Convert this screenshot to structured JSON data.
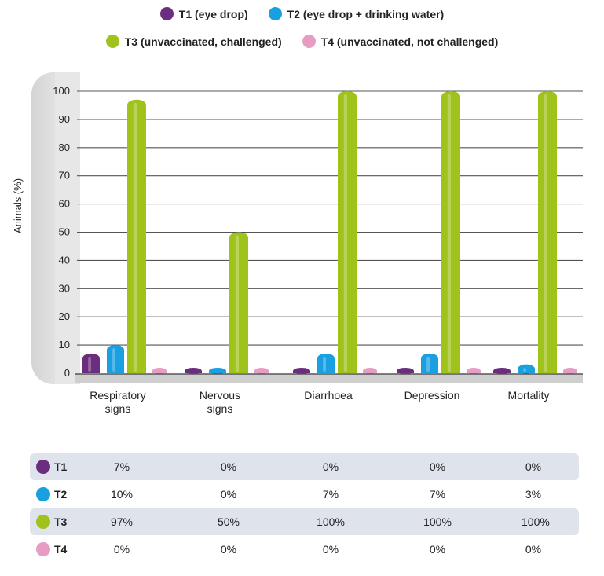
{
  "legend": [
    {
      "label": "T1 (eye drop)",
      "color": "#6b2d7e"
    },
    {
      "label": "T2 (eye drop + drinking water)",
      "color": "#1a9fe0"
    },
    {
      "label": "T3 (unvaccinated, challenged)",
      "color": "#9fc31a"
    },
    {
      "label": "T4 (unvaccinated, not challenged)",
      "color": "#e79cc4"
    }
  ],
  "chart_data": {
    "type": "bar",
    "ylabel": "Animals (%)",
    "ylim": [
      0,
      100
    ],
    "yticks": [
      "0",
      "10",
      "20",
      "30",
      "40",
      "50",
      "60",
      "70",
      "80",
      "90",
      "100"
    ],
    "categories": [
      "Respiratory signs",
      "Nervous signs",
      "Diarrhoea",
      "Depression",
      "Mortality"
    ],
    "series": [
      {
        "name": "T1 (eye drop)",
        "color": "#6b2d7e",
        "values": [
          7,
          0,
          0,
          0,
          0
        ]
      },
      {
        "name": "T2 (eye drop + drinking water)",
        "color": "#1a9fe0",
        "values": [
          10,
          0,
          7,
          7,
          3
        ]
      },
      {
        "name": "T3 (unvaccinated, challenged)",
        "color": "#9fc31a",
        "values": [
          97,
          50,
          100,
          100,
          100
        ]
      },
      {
        "name": "T4 (unvaccinated, not challenged)",
        "color": "#e79cc4",
        "values": [
          0,
          0,
          0,
          0,
          0
        ]
      }
    ],
    "grid": true,
    "legend_position": "top"
  },
  "table": {
    "rows": [
      {
        "label": "T1",
        "color": "#6b2d7e",
        "cells": [
          "7%",
          "0%",
          "0%",
          "0%",
          "0%"
        ]
      },
      {
        "label": "T2",
        "color": "#1a9fe0",
        "cells": [
          "10%",
          "0%",
          "7%",
          "7%",
          "3%"
        ]
      },
      {
        "label": "T3",
        "color": "#9fc31a",
        "cells": [
          "97%",
          "50%",
          "100%",
          "100%",
          "100%"
        ]
      },
      {
        "label": "T4",
        "color": "#e79cc4",
        "cells": [
          "0%",
          "0%",
          "0%",
          "0%",
          "0%"
        ]
      }
    ]
  }
}
